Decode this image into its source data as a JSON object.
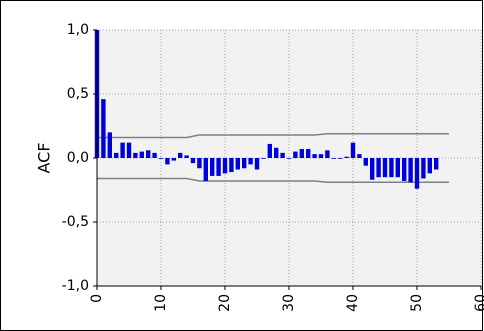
{
  "chart_data": {
    "type": "bar",
    "title": "",
    "ylabel": "ACF",
    "xlabel": "",
    "xlim": [
      0,
      60
    ],
    "ylim": [
      -1.0,
      1.0
    ],
    "x_ticks": [
      0,
      10,
      20,
      30,
      40,
      50,
      60
    ],
    "x_tick_labels": [
      "0",
      "10",
      "20",
      "30",
      "40",
      "50",
      "60"
    ],
    "y_ticks": [
      1.0,
      0.5,
      0.0,
      -0.5,
      -1.0
    ],
    "y_tick_labels": [
      "1,0",
      "0,5",
      "0,0",
      "-0,5",
      "-1,0"
    ],
    "grid": true,
    "lags": [
      0,
      1,
      2,
      3,
      4,
      5,
      6,
      7,
      8,
      9,
      10,
      11,
      12,
      13,
      14,
      15,
      16,
      17,
      18,
      19,
      20,
      21,
      22,
      23,
      24,
      25,
      26,
      27,
      28,
      29,
      30,
      31,
      32,
      33,
      34,
      35,
      36,
      37,
      38,
      39,
      40,
      41,
      42,
      43,
      44,
      45,
      46,
      47,
      48,
      49,
      50,
      51,
      52,
      53
    ],
    "values": [
      1.0,
      0.46,
      0.2,
      0.04,
      0.12,
      0.12,
      0.04,
      0.05,
      0.06,
      0.04,
      0.0,
      -0.05,
      -0.02,
      0.04,
      0.02,
      -0.04,
      -0.08,
      -0.18,
      -0.14,
      -0.14,
      -0.12,
      -0.11,
      -0.09,
      -0.08,
      -0.05,
      -0.09,
      0.0,
      0.11,
      0.08,
      0.04,
      0.0,
      0.05,
      0.07,
      0.07,
      0.03,
      0.03,
      0.06,
      0.0,
      0.0,
      0.01,
      0.12,
      0.03,
      -0.06,
      -0.17,
      -0.15,
      -0.15,
      -0.15,
      -0.15,
      -0.18,
      -0.19,
      -0.24,
      -0.16,
      -0.12,
      -0.09
    ],
    "conf_upper": [
      {
        "lag": 0,
        "value": 0.16
      },
      {
        "lag": 14,
        "value": 0.16
      },
      {
        "lag": 16,
        "value": 0.18
      },
      {
        "lag": 34,
        "value": 0.18
      },
      {
        "lag": 36,
        "value": 0.19
      },
      {
        "lag": 52,
        "value": 0.19
      },
      {
        "lag": 55,
        "value": 0.19
      }
    ],
    "conf_lower": [
      {
        "lag": 0,
        "value": -0.16
      },
      {
        "lag": 14,
        "value": -0.16
      },
      {
        "lag": 16,
        "value": -0.18
      },
      {
        "lag": 34,
        "value": -0.18
      },
      {
        "lag": 36,
        "value": -0.19
      },
      {
        "lag": 52,
        "value": -0.19
      },
      {
        "lag": 55,
        "value": -0.19
      }
    ],
    "bar_color": "#0000dd",
    "band_color": "#808080"
  }
}
